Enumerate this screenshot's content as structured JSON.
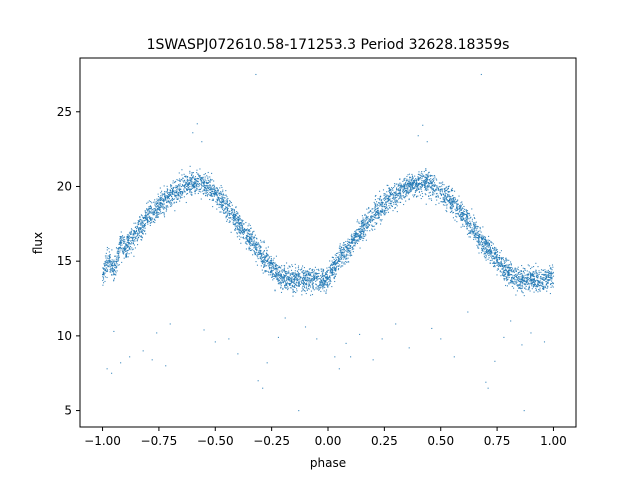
{
  "chart_data": {
    "type": "scatter",
    "title": "1SWASPJ072610.58-171253.3 Period 32628.18359s",
    "xlabel": "phase",
    "ylabel": "flux",
    "xlim": [
      -1.1,
      1.1
    ],
    "ylim": [
      3.9,
      28.6
    ],
    "x_ticks": [
      -1.0,
      -0.75,
      -0.5,
      -0.25,
      0.0,
      0.25,
      0.5,
      0.75,
      1.0
    ],
    "x_tick_labels": [
      "−1.00",
      "−0.75",
      "−0.50",
      "−0.25",
      "0.00",
      "0.25",
      "0.50",
      "0.75",
      "1.00"
    ],
    "y_ticks": [
      5,
      10,
      15,
      20,
      25
    ],
    "y_tick_labels": [
      "5",
      "10",
      "15",
      "20",
      "25"
    ],
    "grid": false,
    "legend": "none",
    "point_color": "#1f77b4",
    "curve": {
      "description_note": "folded light curve repeated over two cycles",
      "min_phase": [
        0.0,
        -1.0,
        1.0
      ],
      "min_flux": 13.8,
      "max_phase": [
        -0.57,
        0.43
      ],
      "max_flux": 20.2,
      "scatter_sigma": 0.7
    },
    "series": [
      {
        "points": [
          [
            -1.0,
            14.1
          ],
          [
            -0.97,
            15.2
          ],
          [
            -0.95,
            14.4
          ],
          [
            -0.92,
            16.3
          ],
          [
            -0.9,
            15.8
          ],
          [
            -0.87,
            16.6
          ],
          [
            -0.85,
            17.0
          ],
          [
            -0.82,
            17.4
          ],
          [
            -0.8,
            18.1
          ],
          [
            -0.77,
            18.3
          ],
          [
            -0.75,
            18.7
          ],
          [
            -0.72,
            19.2
          ],
          [
            -0.7,
            19.4
          ],
          [
            -0.67,
            19.7
          ],
          [
            -0.65,
            20.0
          ],
          [
            -0.62,
            20.1
          ],
          [
            -0.6,
            20.3
          ],
          [
            -0.57,
            20.2
          ],
          [
            -0.55,
            20.1
          ],
          [
            -0.52,
            19.8
          ],
          [
            -0.5,
            19.5
          ],
          [
            -0.47,
            19.0
          ],
          [
            -0.45,
            18.6
          ],
          [
            -0.42,
            18.1
          ],
          [
            -0.4,
            17.6
          ],
          [
            -0.37,
            17.0
          ],
          [
            -0.35,
            16.5
          ],
          [
            -0.32,
            16.0
          ],
          [
            -0.3,
            15.5
          ],
          [
            -0.27,
            15.0
          ],
          [
            -0.25,
            14.6
          ],
          [
            -0.22,
            14.1
          ],
          [
            -0.2,
            13.9
          ],
          [
            -0.17,
            13.8
          ],
          [
            -0.15,
            13.7
          ],
          [
            -0.12,
            13.9
          ],
          [
            -0.1,
            13.7
          ],
          [
            -0.07,
            13.8
          ],
          [
            -0.05,
            13.9
          ],
          [
            -0.02,
            13.7
          ],
          [
            0.0,
            13.9
          ],
          [
            0.02,
            14.4
          ],
          [
            0.05,
            15.1
          ],
          [
            0.07,
            15.6
          ],
          [
            0.1,
            16.0
          ],
          [
            0.12,
            16.6
          ],
          [
            0.15,
            17.1
          ],
          [
            0.17,
            17.5
          ],
          [
            0.2,
            18.0
          ],
          [
            0.22,
            18.4
          ],
          [
            0.25,
            18.8
          ],
          [
            0.27,
            19.1
          ],
          [
            0.3,
            19.4
          ],
          [
            0.32,
            19.7
          ],
          [
            0.35,
            19.9
          ],
          [
            0.37,
            20.1
          ],
          [
            0.4,
            20.2
          ],
          [
            0.43,
            20.3
          ],
          [
            0.45,
            20.2
          ],
          [
            0.47,
            20.0
          ],
          [
            0.5,
            19.7
          ],
          [
            0.52,
            19.4
          ],
          [
            0.55,
            19.0
          ],
          [
            0.57,
            18.6
          ],
          [
            0.6,
            18.1
          ],
          [
            0.62,
            17.6
          ],
          [
            0.65,
            17.1
          ],
          [
            0.67,
            16.6
          ],
          [
            0.7,
            16.1
          ],
          [
            0.72,
            15.6
          ],
          [
            0.75,
            15.1
          ],
          [
            0.77,
            14.7
          ],
          [
            0.8,
            14.2
          ],
          [
            0.82,
            13.9
          ],
          [
            0.85,
            13.8
          ],
          [
            0.87,
            13.7
          ],
          [
            0.9,
            13.8
          ],
          [
            0.92,
            13.7
          ],
          [
            0.95,
            13.8
          ],
          [
            0.97,
            13.9
          ],
          [
            1.0,
            14.0
          ]
        ]
      }
    ],
    "outliers": [
      [
        -0.98,
        7.8
      ],
      [
        -0.96,
        7.5
      ],
      [
        -0.95,
        10.3
      ],
      [
        -0.92,
        8.2
      ],
      [
        -0.88,
        8.6
      ],
      [
        -0.82,
        9.0
      ],
      [
        -0.78,
        8.4
      ],
      [
        -0.76,
        10.2
      ],
      [
        -0.72,
        8.0
      ],
      [
        -0.7,
        10.8
      ],
      [
        -0.6,
        23.6
      ],
      [
        -0.58,
        24.2
      ],
      [
        -0.56,
        23.0
      ],
      [
        -0.55,
        10.4
      ],
      [
        -0.5,
        9.6
      ],
      [
        -0.44,
        9.8
      ],
      [
        -0.4,
        8.8
      ],
      [
        -0.32,
        27.5
      ],
      [
        -0.31,
        7.0
      ],
      [
        -0.29,
        6.5
      ],
      [
        -0.27,
        8.2
      ],
      [
        -0.22,
        9.9
      ],
      [
        -0.19,
        11.2
      ],
      [
        -0.13,
        5.0
      ],
      [
        -0.1,
        10.6
      ],
      [
        -0.05,
        9.8
      ],
      [
        0.03,
        8.6
      ],
      [
        0.05,
        7.8
      ],
      [
        0.08,
        9.5
      ],
      [
        0.1,
        8.6
      ],
      [
        0.14,
        10.1
      ],
      [
        0.2,
        8.4
      ],
      [
        0.24,
        9.8
      ],
      [
        0.3,
        10.8
      ],
      [
        0.36,
        9.2
      ],
      [
        0.4,
        23.4
      ],
      [
        0.42,
        24.1
      ],
      [
        0.44,
        23.0
      ],
      [
        0.46,
        10.5
      ],
      [
        0.5,
        9.8
      ],
      [
        0.56,
        8.6
      ],
      [
        0.62,
        11.6
      ],
      [
        0.68,
        27.5
      ],
      [
        0.7,
        6.9
      ],
      [
        0.71,
        6.5
      ],
      [
        0.74,
        8.3
      ],
      [
        0.78,
        9.9
      ],
      [
        0.81,
        11.0
      ],
      [
        0.86,
        9.4
      ],
      [
        0.87,
        5.0
      ],
      [
        0.9,
        10.2
      ],
      [
        0.96,
        9.6
      ]
    ]
  }
}
